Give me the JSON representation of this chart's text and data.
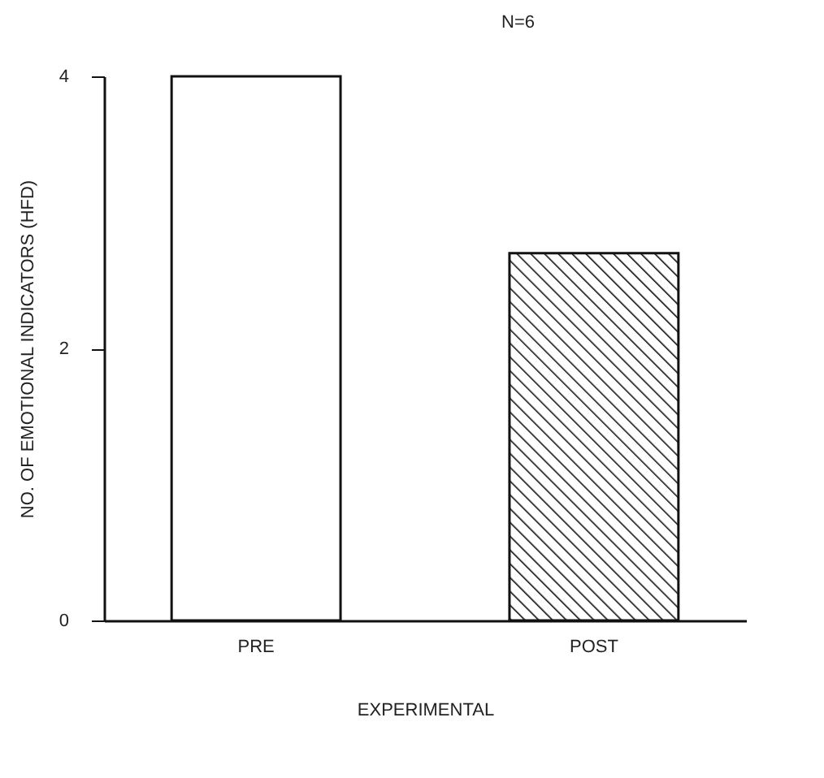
{
  "chart_data": {
    "type": "bar",
    "title": "N=6",
    "xlabel": "EXPERIMENTAL",
    "ylabel": "NO. OF EMOTIONAL INDICATORS (HFD)",
    "categories": [
      "PRE",
      "POST"
    ],
    "values": [
      4.0,
      2.7
    ],
    "colors": [
      "#ffffff",
      "#111111"
    ],
    "ylim": [
      0,
      4
    ],
    "yticks": [
      0,
      2,
      4
    ],
    "grid": false
  }
}
